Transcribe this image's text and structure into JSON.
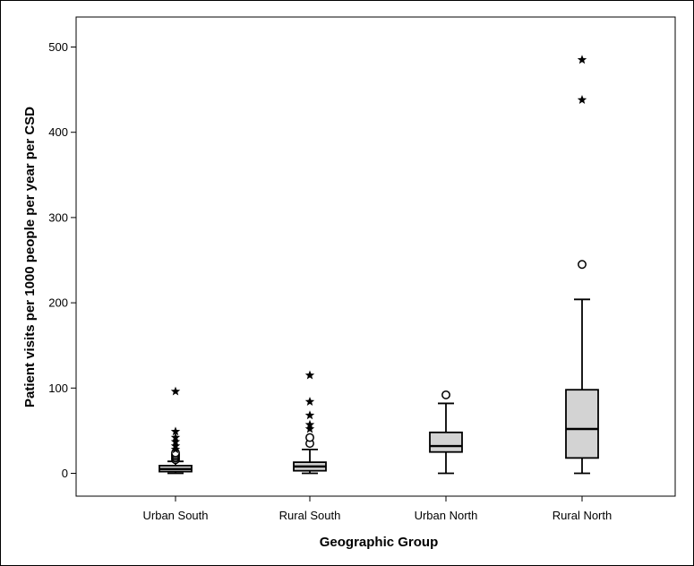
{
  "chart_data": {
    "type": "boxplot",
    "title": "",
    "xlabel": "Geographic Group",
    "ylabel": "Patient visits per 1000 people per year per CSD",
    "ylim": [
      -25,
      525
    ],
    "yticks": [
      0,
      100,
      200,
      300,
      400,
      500
    ],
    "grid": false,
    "legend": "none",
    "box_color": "#d3d3d3",
    "categories": [
      "Urban South",
      "Rural South",
      "Urban North",
      "Rural North"
    ],
    "boxes": [
      {
        "category": "Urban South",
        "whisker_low": 0,
        "q1": 2,
        "median": 5,
        "q3": 9,
        "whisker_high": 14,
        "outliers_circle": [
          16,
          18,
          20,
          22,
          24
        ],
        "outliers_star": [
          28,
          32,
          37,
          42,
          49,
          96
        ]
      },
      {
        "category": "Rural South",
        "whisker_low": 0,
        "q1": 3,
        "median": 8,
        "q3": 13,
        "whisker_high": 28,
        "outliers_circle": [
          35,
          42
        ],
        "outliers_star": [
          52,
          57,
          68,
          84,
          115
        ]
      },
      {
        "category": "Urban North",
        "whisker_low": 0,
        "q1": 25,
        "median": 32,
        "q3": 48,
        "whisker_high": 82,
        "outliers_circle": [
          92
        ],
        "outliers_star": []
      },
      {
        "category": "Rural North",
        "whisker_low": 0,
        "q1": 18,
        "median": 52,
        "q3": 98,
        "whisker_high": 204,
        "outliers_circle": [
          245
        ],
        "outliers_star": [
          438,
          485
        ]
      }
    ]
  }
}
